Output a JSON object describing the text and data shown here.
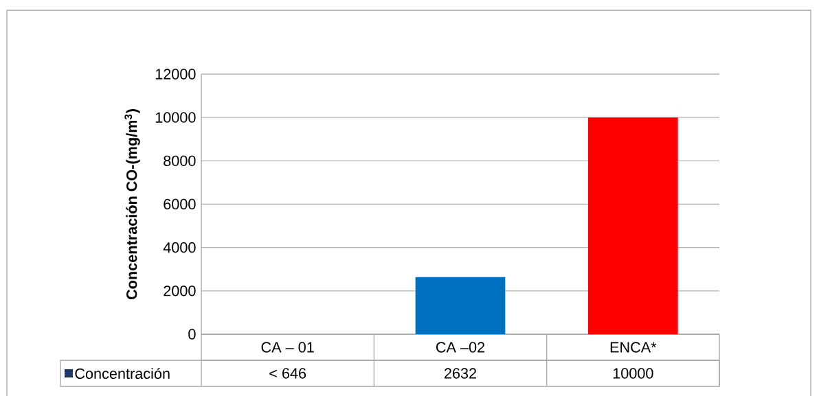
{
  "chart_data": {
    "type": "bar",
    "ylabel": "Concentración CO-(mg/m$^{3}$)",
    "categories": [
      "CA – 01",
      "CA –02",
      "ENCA*"
    ],
    "series": [
      {
        "name": "Concentración",
        "values": [
          0,
          2632,
          10000
        ],
        "value_labels": [
          "< 646",
          "2632",
          "10000"
        ]
      }
    ],
    "colors": [
      "#1f3864",
      "#0070c0",
      "#ff0000"
    ],
    "ylim": [
      0,
      12000
    ],
    "yticks": [
      0,
      2000,
      4000,
      6000,
      8000,
      10000,
      12000
    ],
    "grid": "y",
    "legend": "bottom"
  }
}
